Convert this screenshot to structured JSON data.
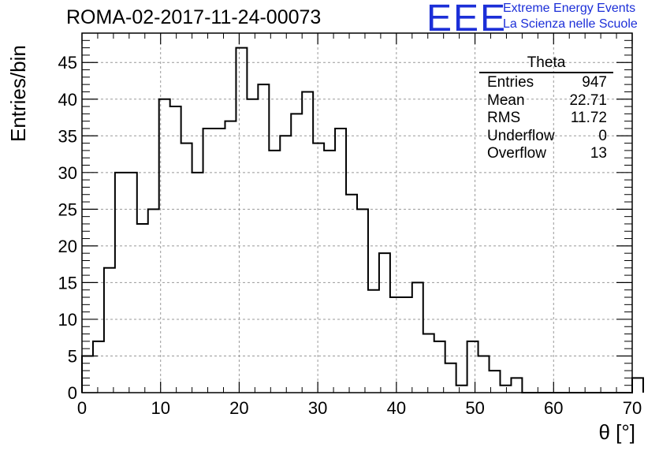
{
  "header": {
    "title": "ROMA-02-2017-11-24-00073",
    "logo_text": "EEE",
    "logo_line1": "Extreme Energy Events",
    "logo_line2": "La Scienza nelle Scuole"
  },
  "stats_box": {
    "title": "Theta",
    "rows": [
      {
        "label": "Entries",
        "value": "947"
      },
      {
        "label": "Mean",
        "value": "22.71"
      },
      {
        "label": "RMS",
        "value": "11.72"
      },
      {
        "label": "Underflow",
        "value": "0"
      },
      {
        "label": "Overflow",
        "value": "13"
      }
    ]
  },
  "colors": {
    "logo": "#1c2fd8",
    "line": "#000000",
    "grid": "#999999"
  },
  "chart_data": {
    "type": "bar",
    "style": "step-histogram",
    "title": "ROMA-02-2017-11-24-00073",
    "xlabel": "θ [°]",
    "ylabel": "Entries/bin",
    "xlim": [
      0,
      70
    ],
    "ylim": [
      0,
      49
    ],
    "grid": true,
    "bin_width": 1.4,
    "xticks": [
      0,
      10,
      20,
      30,
      40,
      50,
      60,
      70
    ],
    "yticks": [
      0,
      5,
      10,
      15,
      20,
      25,
      30,
      35,
      40,
      45
    ],
    "series": [
      {
        "values": [
          5,
          7,
          17,
          30,
          30,
          23,
          25,
          40,
          39,
          34,
          30,
          36,
          36,
          37,
          47,
          40,
          42,
          33,
          35,
          38,
          41,
          34,
          33,
          36,
          27,
          25,
          14,
          19,
          13,
          13,
          15,
          8,
          7,
          4,
          1,
          7,
          5,
          3,
          1,
          2,
          0,
          0,
          0,
          0,
          0,
          0,
          0,
          0,
          0,
          0,
          2
        ]
      }
    ]
  }
}
